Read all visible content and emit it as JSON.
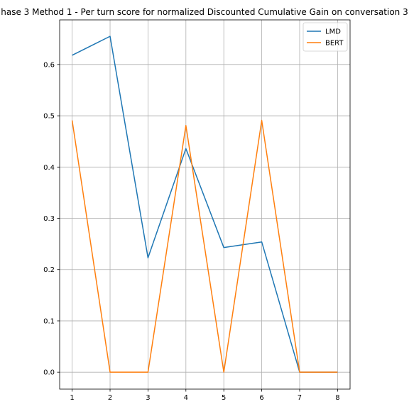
{
  "chart_data": {
    "type": "line",
    "title": "hase 3 Method 1 - Per turn score for normalized Discounted Cumulative Gain on conversation 3",
    "xlabel": "",
    "ylabel": "",
    "x": [
      1,
      2,
      3,
      4,
      5,
      6,
      7,
      8
    ],
    "x_ticks": [
      "1",
      "2",
      "3",
      "4",
      "5",
      "6",
      "7",
      "8"
    ],
    "y_ticks": [
      "0.0",
      "0.1",
      "0.2",
      "0.3",
      "0.4",
      "0.5",
      "0.6"
    ],
    "y_tick_values": [
      0.0,
      0.1,
      0.2,
      0.3,
      0.4,
      0.5,
      0.6
    ],
    "xlim": [
      0.67,
      8.33
    ],
    "ylim": [
      -0.033,
      0.687
    ],
    "grid": true,
    "legend_position": "top-right",
    "series": [
      {
        "name": "LMD",
        "color": "#1f77b4",
        "values": [
          0.618,
          0.655,
          0.223,
          0.436,
          0.243,
          0.254,
          0.0,
          0.0
        ]
      },
      {
        "name": "BERT",
        "color": "#ff7f0e",
        "values": [
          0.491,
          0.0,
          0.0,
          0.481,
          0.0,
          0.491,
          0.0,
          0.0
        ]
      }
    ]
  }
}
